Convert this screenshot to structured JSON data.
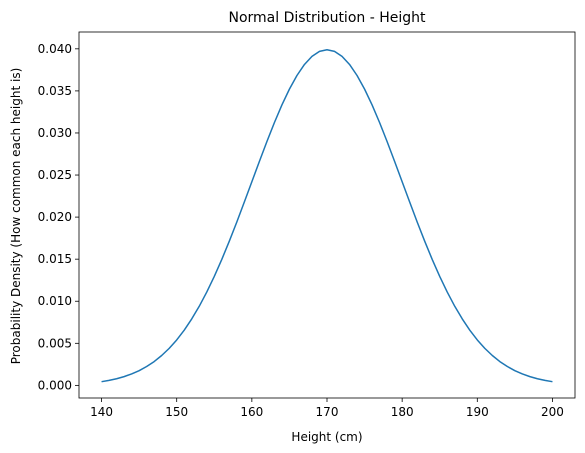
{
  "chart_data": {
    "type": "line",
    "title": "Normal Distribution - Height",
    "xlabel": "Height (cm)",
    "ylabel": "Probability Density (How common each height is)",
    "xlim": [
      137,
      203
    ],
    "ylim": [
      -0.0015,
      0.042
    ],
    "xticks": [
      140,
      150,
      160,
      170,
      180,
      190,
      200
    ],
    "xtick_labels": [
      "140",
      "150",
      "160",
      "170",
      "180",
      "190",
      "200"
    ],
    "yticks": [
      0.0,
      0.005,
      0.01,
      0.015,
      0.02,
      0.025,
      0.03,
      0.035,
      0.04
    ],
    "ytick_labels": [
      "0.000",
      "0.005",
      "0.010",
      "0.015",
      "0.020",
      "0.025",
      "0.030",
      "0.035",
      "0.040"
    ],
    "grid": false,
    "series": [
      {
        "color": "#1f77b4",
        "x": [
          140,
          141,
          142,
          143,
          144,
          145,
          146,
          147,
          148,
          149,
          150,
          151,
          152,
          153,
          154,
          155,
          156,
          157,
          158,
          159,
          160,
          161,
          162,
          163,
          164,
          165,
          166,
          167,
          168,
          169,
          170,
          171,
          172,
          173,
          174,
          175,
          176,
          177,
          178,
          179,
          180,
          181,
          182,
          183,
          184,
          185,
          186,
          187,
          188,
          189,
          190,
          191,
          192,
          193,
          194,
          195,
          196,
          197,
          198,
          199,
          200
        ],
        "y": [
          0.00044,
          0.0006,
          0.00079,
          0.00104,
          0.00136,
          0.00175,
          0.00224,
          0.00283,
          0.00355,
          0.0044,
          0.0054,
          0.00656,
          0.0079,
          0.0094,
          0.01109,
          0.01295,
          0.01497,
          0.01714,
          0.01942,
          0.02179,
          0.0242,
          0.02661,
          0.02897,
          0.03123,
          0.03333,
          0.03521,
          0.03683,
          0.03814,
          0.0391,
          0.0397,
          0.03989,
          0.0397,
          0.0391,
          0.03814,
          0.03683,
          0.03521,
          0.03333,
          0.03123,
          0.02897,
          0.02661,
          0.0242,
          0.02179,
          0.01942,
          0.01714,
          0.01497,
          0.01295,
          0.01109,
          0.0094,
          0.0079,
          0.00656,
          0.0054,
          0.0044,
          0.00355,
          0.00283,
          0.00224,
          0.00175,
          0.00136,
          0.00104,
          0.00079,
          0.0006,
          0.00044
        ]
      }
    ]
  }
}
